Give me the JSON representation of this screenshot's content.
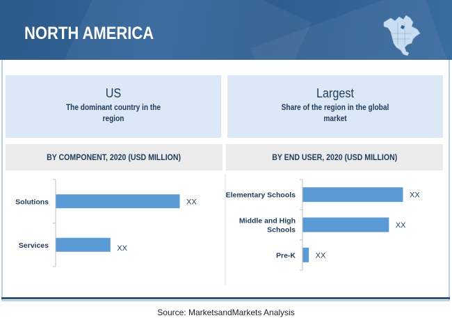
{
  "header": {
    "title": "NORTH AMERICA",
    "icon": "north-america-map-icon",
    "background_color": "#2f5f8f"
  },
  "cards": [
    {
      "title": "US",
      "subtitle": "The dominant country in the region"
    },
    {
      "title": "Largest",
      "subtitle": "Share of the region in the global market"
    }
  ],
  "source": "Source: MarketsandMarkets Analysis",
  "chart_data": [
    {
      "type": "bar",
      "orientation": "horizontal",
      "title": "BY COMPONENT,  2020 (USD MILLION)",
      "categories": [
        "Solutions",
        "Services"
      ],
      "values": [
        100,
        44
      ],
      "value_labels": [
        "XX",
        "XX"
      ],
      "xlabel": "",
      "ylabel": "",
      "xlim": [
        0,
        100
      ],
      "grid": false,
      "bar_color": "#5b9bd5",
      "note": "values are relative (unlabelled, shown as XX)"
    },
    {
      "type": "bar",
      "orientation": "horizontal",
      "title": "BY END USER, 2020 (USD MILLION)",
      "categories": [
        "Elementary Schools",
        "Middle and High Schools",
        "Pre-K"
      ],
      "category_lines": [
        [
          "Elementary Schools"
        ],
        [
          "Middle and High",
          "Schools"
        ],
        [
          "Pre-K"
        ]
      ],
      "values": [
        100,
        86,
        6
      ],
      "value_labels": [
        "XX",
        "XX",
        "XX"
      ],
      "xlabel": "",
      "ylabel": "",
      "xlim": [
        0,
        100
      ],
      "grid": false,
      "bar_color": "#5b9bd5",
      "note": "values are relative (unlabelled, shown as XX)"
    }
  ]
}
